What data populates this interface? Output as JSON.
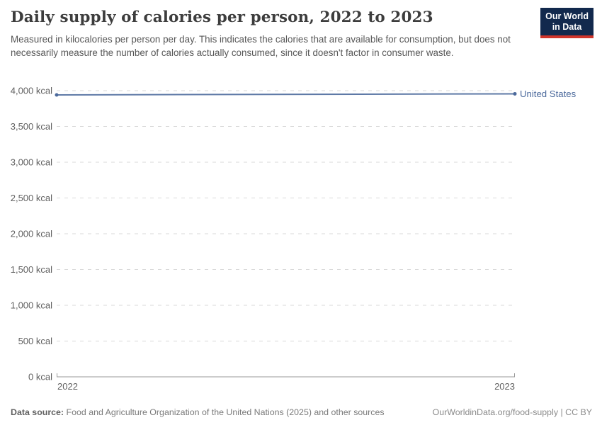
{
  "header": {
    "title": "Daily supply of calories per person, 2022 to 2023",
    "subtitle": "Measured in kilocalories per person per day. This indicates the calories that are available for consumption, but does not necessarily measure the number of calories actually consumed, since it doesn't factor in consumer waste."
  },
  "logo": {
    "line1": "Our World",
    "line2": "in Data",
    "bg_color": "#12294d",
    "bar_color": "#d0352b"
  },
  "footer": {
    "source_label": "Data source:",
    "source_text": " Food and Agriculture Organization of the United Nations (2025) and other sources",
    "rights": "OurWorldinData.org/food-supply | CC BY"
  },
  "chart_data": {
    "type": "line",
    "title": "Daily supply of calories per person, 2022 to 2023",
    "x": [
      2022,
      2023
    ],
    "x_tick_labels": [
      "2022",
      "2023"
    ],
    "series": [
      {
        "name": "United States",
        "values": [
          3941,
          3956
        ],
        "color": "#4C6A9C"
      }
    ],
    "ylim": [
      0,
      4000
    ],
    "yticks": [
      0,
      500,
      1000,
      1500,
      2000,
      2500,
      3000,
      3500,
      4000
    ],
    "ytick_labels": [
      "0 kcal",
      "500 kcal",
      "1,000 kcal",
      "1,500 kcal",
      "2,000 kcal",
      "2,500 kcal",
      "3,000 kcal",
      "3,500 kcal",
      "4,000 kcal"
    ],
    "ytick_suffix": " kcal",
    "xlabel": "",
    "ylabel": "",
    "grid": "horizontal dashed",
    "legend_position": "line-end-label",
    "colors": {
      "grid": "#d9d9d9",
      "axis": "#999999",
      "tick_text": "#606060",
      "series": "#4C6A9C"
    }
  }
}
